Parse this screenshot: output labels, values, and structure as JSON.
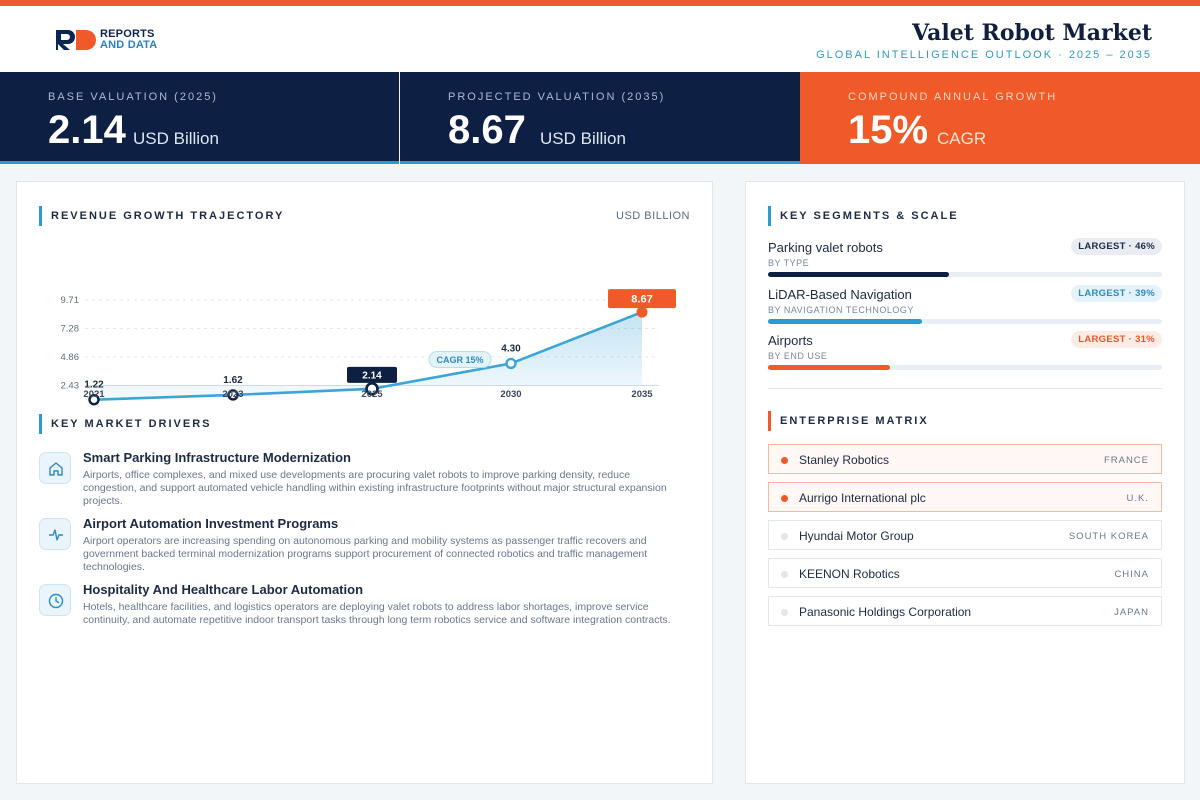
{
  "header": {
    "logo_line1": "REPORTS",
    "logo_line2": "AND DATA",
    "title": "Valet Robot Market",
    "subtitle": "GLOBAL INTELLIGENCE OUTLOOK  ·  2025 – 2035"
  },
  "kpis": [
    {
      "label": "BASE VALUATION (2025)",
      "value": "2.14",
      "unit": "USD Billion"
    },
    {
      "label": "PROJECTED VALUATION (2035)",
      "value": "8.67",
      "unit": "USD Billion"
    },
    {
      "label": "COMPOUND ANNUAL GROWTH",
      "value": "15%",
      "unit": "CAGR"
    }
  ],
  "colors": {
    "accent": "#ef5a28",
    "navy": "#0d1f42",
    "blue": "#2a9ad2"
  },
  "chart_section": {
    "title": "REVENUE GROWTH TRAJECTORY",
    "unit": "USD BILLION"
  },
  "chart_data": {
    "type": "area",
    "x": [
      "2021",
      "2023",
      "2025",
      "2030",
      "2035"
    ],
    "series": [
      {
        "values": [
          1.22,
          1.62,
          2.14,
          4.3,
          8.67
        ]
      }
    ],
    "data_labels": [
      "1.22",
      "1.62",
      "2.14",
      "4.30",
      "8.67"
    ],
    "y_ticks": [
      "9.71",
      "7.28",
      "4.86",
      "2.43"
    ],
    "ylim": [
      0,
      9.71
    ],
    "annotation": "CAGR 15%",
    "grid": true
  },
  "drivers_section": {
    "title": "KEY MARKET DRIVERS"
  },
  "drivers": [
    {
      "icon": "home-icon",
      "title": "Smart Parking Infrastructure Modernization",
      "text": "Airports, office complexes, and mixed use developments are procuring valet robots to improve parking density, reduce congestion, and support automated vehicle handling within existing infrastructure footprints without major structural expansion projects."
    },
    {
      "icon": "pulse-icon",
      "title": "Airport Automation Investment Programs",
      "text": "Airport operators are increasing spending on autonomous parking and mobility systems as passenger traffic recovers and government backed terminal modernization programs support procurement of connected robotics and traffic management technologies."
    },
    {
      "icon": "clock-icon",
      "title": "Hospitality And Healthcare Labor Automation",
      "text": "Hotels, healthcare facilities, and logistics operators are deploying valet robots to address labor shortages, improve service continuity, and automate repetitive indoor transport tasks through long term robotics service and software integration contracts."
    }
  ],
  "segments_section": {
    "title": "KEY SEGMENTS & SCALE"
  },
  "segments": [
    {
      "name": "Parking valet robots",
      "sub": "BY TYPE",
      "badge": "LARGEST · 46%",
      "share": 46,
      "color": "#0d1f42",
      "badge_bg": "#e9edf3",
      "badge_fg": "#1d2a44"
    },
    {
      "name": "LiDAR-Based Navigation",
      "sub": "BY NAVIGATION TECHNOLOGY",
      "badge": "LARGEST · 39%",
      "share": 39,
      "color": "#2a9ad2",
      "badge_bg": "#e4f2fa",
      "badge_fg": "#2a8cc4"
    },
    {
      "name": "Airports",
      "sub": "BY END USE",
      "badge": "LARGEST · 31%",
      "share": 31,
      "color": "#ef5a28",
      "badge_bg": "#fdece5",
      "badge_fg": "#e2572a"
    }
  ],
  "enterprise_section": {
    "title": "ENTERPRISE MATRIX"
  },
  "enterprises": [
    {
      "name": "Stanley Robotics",
      "country": "FRANCE",
      "highlight": true
    },
    {
      "name": "Aurrigo International plc",
      "country": "U.K.",
      "highlight": true
    },
    {
      "name": "Hyundai Motor Group",
      "country": "SOUTH KOREA",
      "highlight": false
    },
    {
      "name": "KEENON Robotics",
      "country": "CHINA",
      "highlight": false
    },
    {
      "name": "Panasonic Holdings Corporation",
      "country": "JAPAN",
      "highlight": false
    }
  ]
}
